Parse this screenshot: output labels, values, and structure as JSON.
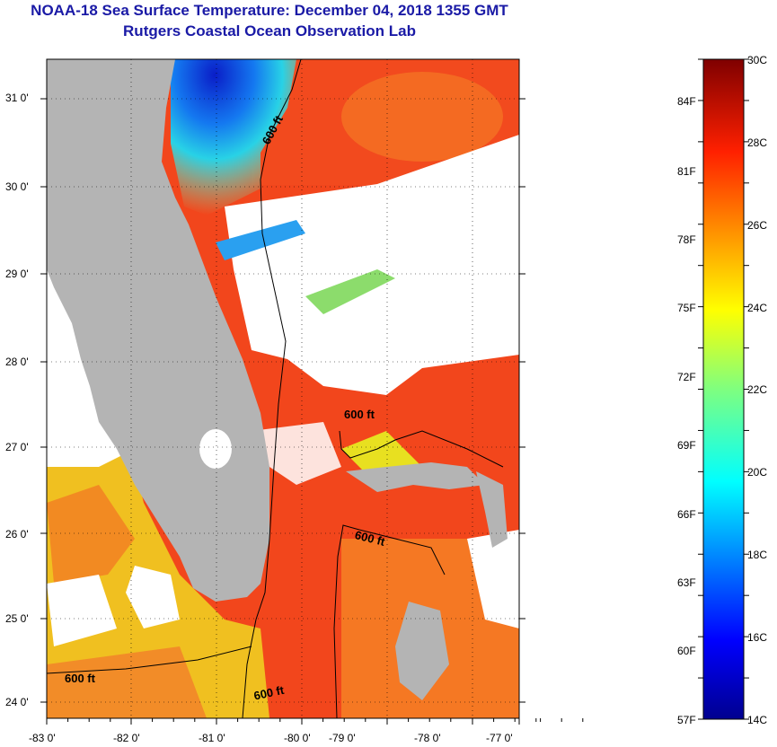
{
  "title": "NOAA-18 Sea Surface Temperature:  December 04, 2018 1355 GMT",
  "subtitle": "Rutgers Coastal Ocean Observation Lab",
  "lat_labels": [
    "31 0'",
    "30 0'",
    "29 0'",
    "28 0'",
    "27 0'",
    "26 0'",
    "25 0'",
    "24 0'"
  ],
  "lon_labels": [
    "-83 0'",
    "-82 0'",
    "-81 0'",
    "-80 0'",
    "-79 0'",
    "-78 0'",
    "-77 0'"
  ],
  "contours": [
    "600 ft",
    "600 ft",
    "600 ft",
    "600 ft",
    "600 ft"
  ],
  "colorbar": {
    "celsius": [
      "30C",
      "28C",
      "26C",
      "24C",
      "22C",
      "20C",
      "18C",
      "16C",
      "14C"
    ],
    "fahrenheit": [
      "84F",
      "81F",
      "78F",
      "75F",
      "72F",
      "69F",
      "66F",
      "63F",
      "60F",
      "57F"
    ]
  },
  "colors": {
    "title": "#1a1aa6",
    "land": "#b4b4b4",
    "cloud": "#ffffff",
    "warm": "#f0401a",
    "cold": "#0a20c8"
  }
}
